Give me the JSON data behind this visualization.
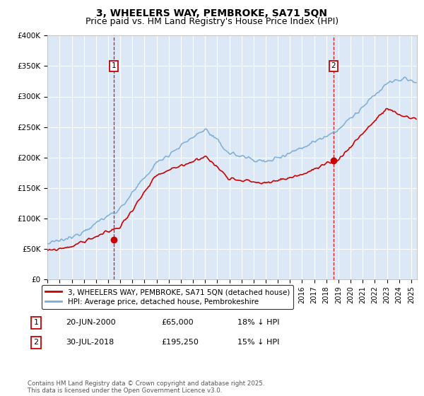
{
  "title": "3, WHEELERS WAY, PEMBROKE, SA71 5QN",
  "subtitle": "Price paid vs. HM Land Registry's House Price Index (HPI)",
  "ylabel_ticks": [
    "£0",
    "£50K",
    "£100K",
    "£150K",
    "£200K",
    "£250K",
    "£300K",
    "£350K",
    "£400K"
  ],
  "ylim": [
    0,
    400000
  ],
  "xlim_start": 1995.0,
  "xlim_end": 2025.5,
  "marker1_x": 2000.47,
  "marker1_y": 65000,
  "marker2_x": 2018.58,
  "marker2_y": 195250,
  "legend1": "3, WHEELERS WAY, PEMBROKE, SA71 5QN (detached house)",
  "legend2": "HPI: Average price, detached house, Pembrokeshire",
  "table_row1": [
    "1",
    "20-JUN-2000",
    "£65,000",
    "18% ↓ HPI"
  ],
  "table_row2": [
    "2",
    "30-JUL-2018",
    "£195,250",
    "15% ↓ HPI"
  ],
  "footer": "Contains HM Land Registry data © Crown copyright and database right 2025.\nThis data is licensed under the Open Government Licence v3.0.",
  "red_color": "#cc0000",
  "blue_color": "#7aaed6",
  "bg_color": "#dce8f5",
  "grid_color": "#ffffff",
  "title_fontsize": 10,
  "subtitle_fontsize": 9
}
